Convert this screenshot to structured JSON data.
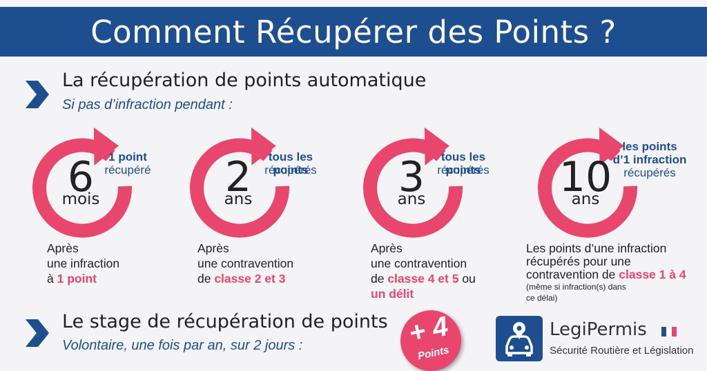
{
  "banner": {
    "title": "Comment Récupérer des Points ?"
  },
  "auto": {
    "title": "La récupération de points automatique",
    "subtitle": "Si pas d’infraction pendant :"
  },
  "items": [
    {
      "number": "6",
      "unit": "mois",
      "recovered_bold": "1 point",
      "recovered_bold2": "",
      "recovered_text": "récupéré",
      "desc_lines": [
        "Après",
        "une infraction"
      ],
      "desc_last_prefix": "à ",
      "desc_highlight": "1 point",
      "desc_suffix": "",
      "desc_extra": "",
      "note": []
    },
    {
      "number": "2",
      "unit": "ans",
      "recovered_bold": "tous les points",
      "recovered_bold2": "",
      "recovered_text": "récupérés",
      "desc_lines": [
        "Après",
        "une contravention"
      ],
      "desc_last_prefix": "de ",
      "desc_highlight": "classe 2 et 3",
      "desc_suffix": "",
      "desc_extra": "",
      "note": []
    },
    {
      "number": "3",
      "unit": "ans",
      "recovered_bold": "tous les points",
      "recovered_bold2": "",
      "recovered_text": "récupérés",
      "desc_lines": [
        "Après",
        "une contravention"
      ],
      "desc_last_prefix": "de ",
      "desc_highlight": "classe 4 et 5",
      "desc_suffix": " ou",
      "desc_extra": "un délit",
      "note": []
    },
    {
      "number": "10",
      "unit": "ans",
      "recovered_bold": "les points",
      "recovered_bold2": "d’1 infraction",
      "recovered_text": "récupérés",
      "desc_lines": [
        "Les points d’une infraction",
        "récupérés pour une"
      ],
      "desc_last_prefix": "contravention de ",
      "desc_highlight": "classe 1 à 4",
      "desc_suffix": "",
      "desc_extra": "",
      "note": [
        "(même si infraction(s) dans",
        "ce délai)"
      ]
    }
  ],
  "stage": {
    "title": "Le stage de récupération de points",
    "subtitle": "Volontaire, une fois par an, sur 2 jours :"
  },
  "badge": {
    "value": "+ 4",
    "label": "Points"
  },
  "logo": {
    "name": "LegiPermis",
    "tagline": "Sécurité Routière et Législation",
    "icon": "car-location-icon",
    "flag_colors": [
      "#1d4e8f",
      "#ffffff",
      "#e8466c"
    ]
  },
  "colors": {
    "brand_blue": "#1d4e8f",
    "accent_pink": "#e8466c"
  }
}
